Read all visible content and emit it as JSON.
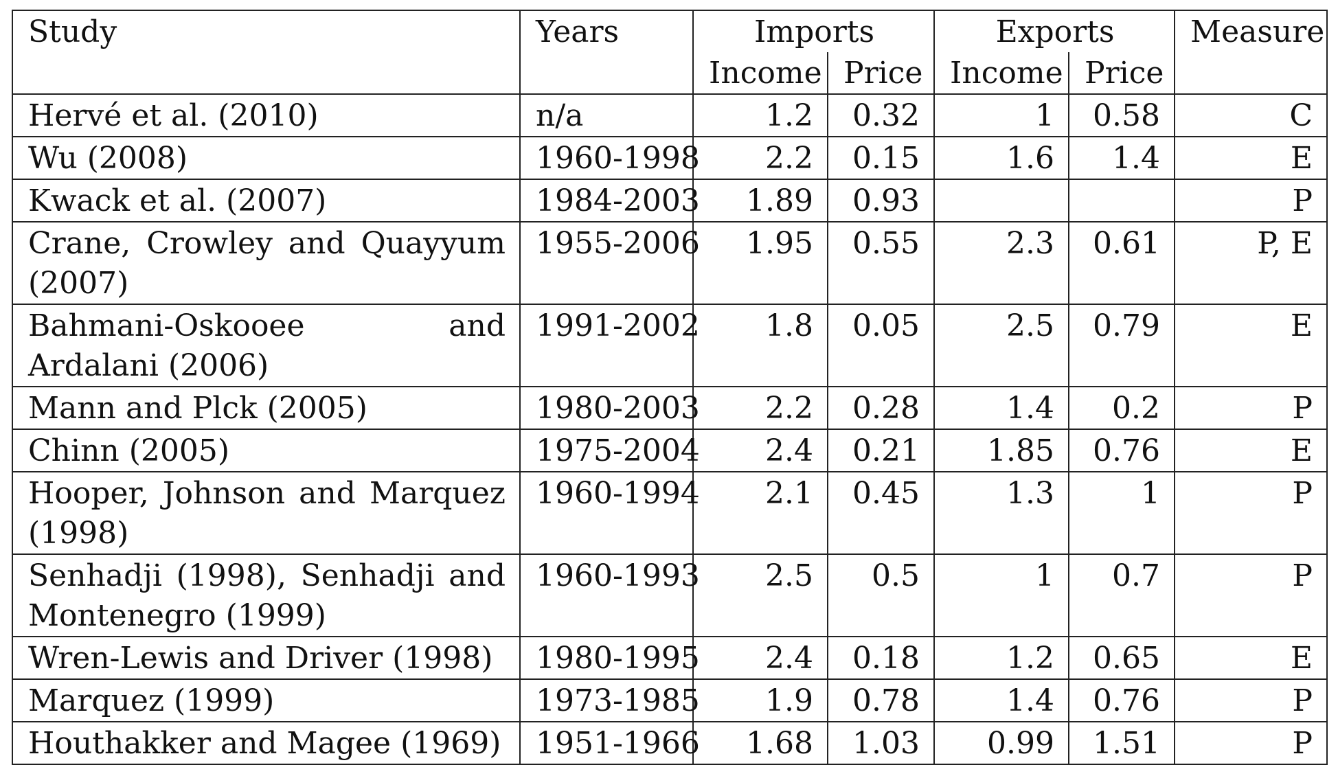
{
  "table": {
    "headers": {
      "study": "Study",
      "years": "Years",
      "imports": "Imports",
      "exports": "Exports",
      "measure": "Measure",
      "imports_income": "Income",
      "imports_price": "Price",
      "exports_income": "Income",
      "exports_price": "Price"
    },
    "rows": [
      {
        "study": "Hervé et al. (2010)",
        "years": "n/a",
        "imp_income": "1.2",
        "imp_price": "0.32",
        "exp_income": "1",
        "exp_price": "0.58",
        "measure": "C"
      },
      {
        "study": "Wu (2008)",
        "years": "1960-1998",
        "imp_income": "2.2",
        "imp_price": "0.15",
        "exp_income": "1.6",
        "exp_price": "1.4",
        "measure": "E"
      },
      {
        "study": "Kwack et al. (2007)",
        "years": "1984-2003",
        "imp_income": "1.89",
        "imp_price": "0.93",
        "exp_income": "",
        "exp_price": "",
        "measure": "P"
      },
      {
        "study": "Crane, Crowley and Quayyum (2007)",
        "years": "1955-2006",
        "imp_income": "1.95",
        "imp_price": "0.55",
        "exp_income": "2.3",
        "exp_price": "0.61",
        "measure": "P, E"
      },
      {
        "study": "Bahmani-Oskooee and Ardalani (2006)",
        "years": "1991-2002",
        "imp_income": "1.8",
        "imp_price": "0.05",
        "exp_income": "2.5",
        "exp_price": "0.79",
        "measure": "E"
      },
      {
        "study": "Mann and Plck (2005)",
        "years": "1980-2003",
        "imp_income": "2.2",
        "imp_price": "0.28",
        "exp_income": "1.4",
        "exp_price": "0.2",
        "measure": "P"
      },
      {
        "study": "Chinn (2005)",
        "years": "1975-2004",
        "imp_income": "2.4",
        "imp_price": "0.21",
        "exp_income": "1.85",
        "exp_price": "0.76",
        "measure": "E"
      },
      {
        "study": "Hooper, Johnson and Marquez (1998)",
        "years": "1960-1994",
        "imp_income": "2.1",
        "imp_price": "0.45",
        "exp_income": "1.3",
        "exp_price": "1",
        "measure": "P"
      },
      {
        "study": "Senhadji (1998), Senhadji and Montenegro (1999)",
        "years": "1960-1993",
        "imp_income": "2.5",
        "imp_price": "0.5",
        "exp_income": "1",
        "exp_price": "0.7",
        "measure": "P"
      },
      {
        "study": "Wren-Lewis and Driver (1998)",
        "years": "1980-1995",
        "imp_income": "2.4",
        "imp_price": "0.18",
        "exp_income": "1.2",
        "exp_price": "0.65",
        "measure": "E"
      },
      {
        "study": "Marquez (1999)",
        "years": "1973-1985",
        "imp_income": "1.9",
        "imp_price": "0.78",
        "exp_income": "1.4",
        "exp_price": "0.76",
        "measure": "P"
      },
      {
        "study": "Houthakker and Magee (1969)",
        "years": "1951-1966",
        "imp_income": "1.68",
        "imp_price": "1.03",
        "exp_income": "0.99",
        "exp_price": "1.51",
        "measure": "P"
      }
    ]
  }
}
